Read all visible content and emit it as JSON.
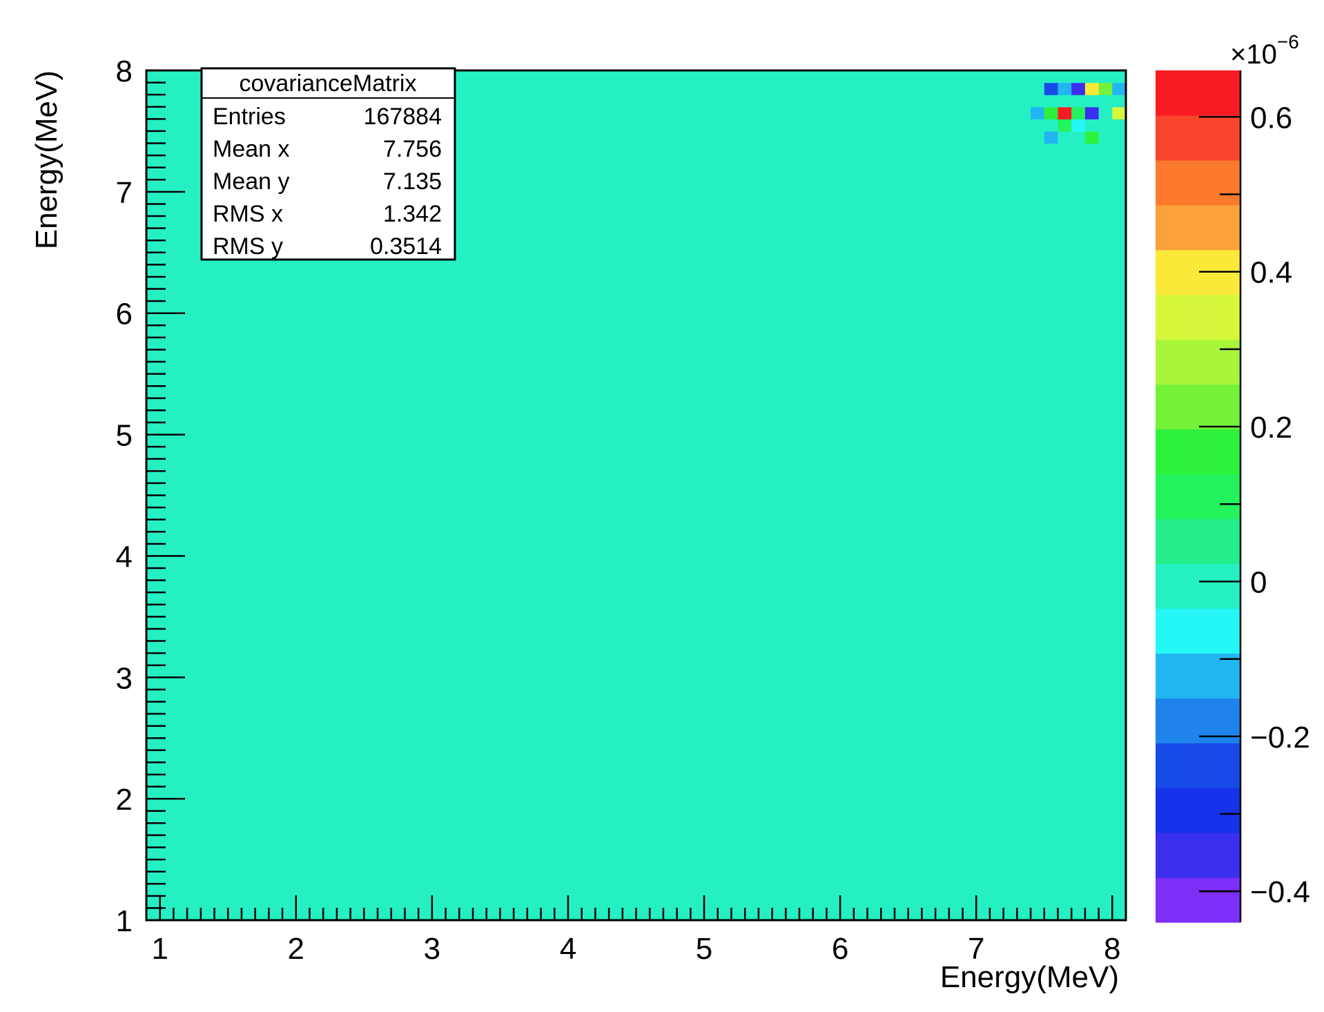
{
  "chart_data": {
    "type": "heatmap",
    "title": "",
    "xlabel": "Energy(MeV)",
    "ylabel": "Energy(MeV)",
    "xlim": [
      0.9,
      8.1
    ],
    "ylim": [
      1,
      8
    ],
    "x_ticks": [
      "1",
      "2",
      "3",
      "4",
      "5",
      "6",
      "7",
      "8"
    ],
    "y_ticks": [
      "1",
      "2",
      "3",
      "4",
      "5",
      "6",
      "7",
      "8"
    ],
    "nbins_x": 72,
    "nbins_y": 70,
    "z_unit": "×10",
    "z_exponent": "−6",
    "zlim": [
      -0.44,
      0.66
    ],
    "z_ticks": [
      "−0.4",
      "−0.2",
      "0",
      "0.2",
      "0.4",
      "0.6"
    ],
    "z_tick_values": [
      -0.4,
      -0.2,
      0,
      0.2,
      0.4,
      0.6
    ],
    "palette": [
      "#7b2ff7",
      "#3b2fee",
      "#1432e8",
      "#164be8",
      "#1e83ea",
      "#21b6f2",
      "#25f7f7",
      "#25f0c4",
      "#25ef8c",
      "#24f35e",
      "#2cf23b",
      "#74f23a",
      "#a8f53a",
      "#d6f73c",
      "#fbe93a",
      "#fba23a",
      "#fb7a2e",
      "#f8452c",
      "#f81c22"
    ],
    "background_value": 0.0,
    "notable_cells": [
      {
        "x": 7.65,
        "y": 7.65,
        "value": 0.62
      },
      {
        "x": 7.75,
        "y": 7.85,
        "value": -0.38
      },
      {
        "x": 7.55,
        "y": 7.85,
        "value": -0.25
      },
      {
        "x": 7.65,
        "y": 7.85,
        "value": -0.15
      },
      {
        "x": 7.85,
        "y": 7.85,
        "value": 0.42
      },
      {
        "x": 7.95,
        "y": 7.85,
        "value": 0.25
      },
      {
        "x": 8.05,
        "y": 7.85,
        "value": -0.15
      },
      {
        "x": 7.85,
        "y": 7.65,
        "value": -0.38
      },
      {
        "x": 7.45,
        "y": 7.65,
        "value": -0.15
      },
      {
        "x": 7.55,
        "y": 7.65,
        "value": 0.18
      },
      {
        "x": 8.05,
        "y": 7.65,
        "value": 0.35
      },
      {
        "x": 7.75,
        "y": 7.65,
        "value": 0.12
      },
      {
        "x": 7.65,
        "y": 7.55,
        "value": 0.12
      },
      {
        "x": 7.75,
        "y": 7.55,
        "value": -0.08
      },
      {
        "x": 7.55,
        "y": 7.45,
        "value": -0.12
      },
      {
        "x": 7.85,
        "y": 7.45,
        "value": 0.15
      }
    ],
    "stats": {
      "name": "covarianceMatrix",
      "rows": [
        {
          "label": "Entries",
          "value": "167884"
        },
        {
          "label": "Mean x",
          "value": "7.756"
        },
        {
          "label": "Mean y",
          "value": "7.135"
        },
        {
          "label": "RMS x",
          "value": "1.342"
        },
        {
          "label": "RMS y",
          "value": "0.3514"
        }
      ]
    },
    "legend": "top-left"
  }
}
